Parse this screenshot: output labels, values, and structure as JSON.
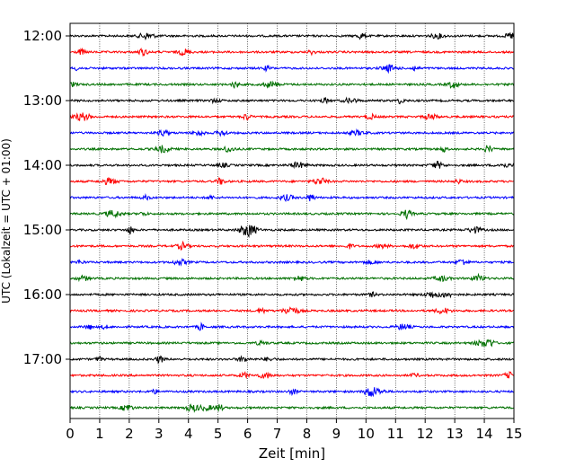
{
  "chart_data": {
    "type": "line",
    "title": "",
    "xlabel": "Zeit  [min]",
    "ylabel": "UTC (Lokalzeit = UTC + 01:00)",
    "xlim": [
      0,
      15
    ],
    "x_ticks": [
      "0",
      "1",
      "2",
      "3",
      "4",
      "5",
      "6",
      "7",
      "8",
      "9",
      "10",
      "11",
      "12",
      "13",
      "14",
      "15"
    ],
    "vertical_grid": true,
    "trace_colors": [
      "#000000",
      "#ff0000",
      "#0000ff",
      "#007000"
    ],
    "y_tick_labels": [
      "12:00",
      "13:00",
      "14:00",
      "15:00",
      "16:00",
      "17:00"
    ],
    "traces": [
      {
        "time": "12:00",
        "color": "#000000"
      },
      {
        "time": "12:15",
        "color": "#ff0000"
      },
      {
        "time": "12:30",
        "color": "#0000ff"
      },
      {
        "time": "12:45",
        "color": "#007000"
      },
      {
        "time": "13:00",
        "color": "#000000"
      },
      {
        "time": "13:15",
        "color": "#ff0000"
      },
      {
        "time": "13:30",
        "color": "#0000ff"
      },
      {
        "time": "13:45",
        "color": "#007000"
      },
      {
        "time": "14:00",
        "color": "#000000"
      },
      {
        "time": "14:15",
        "color": "#ff0000"
      },
      {
        "time": "14:30",
        "color": "#0000ff"
      },
      {
        "time": "14:45",
        "color": "#007000"
      },
      {
        "time": "15:00",
        "color": "#000000"
      },
      {
        "time": "15:15",
        "color": "#ff0000"
      },
      {
        "time": "15:30",
        "color": "#0000ff"
      },
      {
        "time": "15:45",
        "color": "#007000"
      },
      {
        "time": "16:00",
        "color": "#000000"
      },
      {
        "time": "16:15",
        "color": "#ff0000"
      },
      {
        "time": "16:30",
        "color": "#0000ff"
      },
      {
        "time": "16:45",
        "color": "#007000"
      },
      {
        "time": "17:00",
        "color": "#000000"
      },
      {
        "time": "17:15",
        "color": "#ff0000"
      },
      {
        "time": "17:30",
        "color": "#0000ff"
      },
      {
        "time": "17:45",
        "color": "#007000"
      }
    ]
  }
}
